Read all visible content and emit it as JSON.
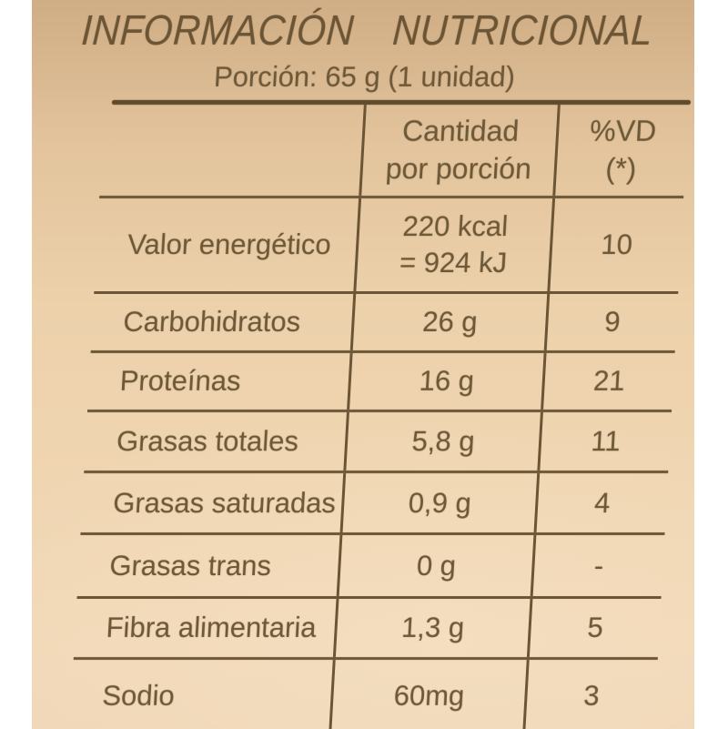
{
  "label": {
    "title": "INFORMACIÓN NUTRICIONAL",
    "portion": "Porción: 65 g (1 unidad)",
    "header": {
      "amount_line1": "Cantidad",
      "amount_line2": "por porción",
      "dv_line1": "%VD",
      "dv_line2": "(*)"
    },
    "rows": [
      {
        "name": "Valor energético",
        "amount": "220 kcal",
        "amount2": "= 924 kJ",
        "vd": "10"
      },
      {
        "name": "Carbohidratos",
        "amount": "26 g",
        "vd": "9"
      },
      {
        "name": "Proteínas",
        "amount": "16 g",
        "vd": "21"
      },
      {
        "name": "Grasas totales",
        "amount": "5,8 g",
        "vd": "11"
      },
      {
        "name": "Grasas saturadas",
        "amount": "0,9 g",
        "vd": "4"
      },
      {
        "name": "Grasas trans",
        "amount": "0 g",
        "vd": "-"
      },
      {
        "name": "Fibra alimentaria",
        "amount": "1,3 g",
        "vd": "5"
      },
      {
        "name": "Sodio",
        "amount": "60mg",
        "vd": "3"
      }
    ],
    "colors": {
      "page_background": "#ffffff",
      "label_background": "#ecd1ab",
      "text": "#6d5838",
      "rule": "#6b5535"
    }
  }
}
